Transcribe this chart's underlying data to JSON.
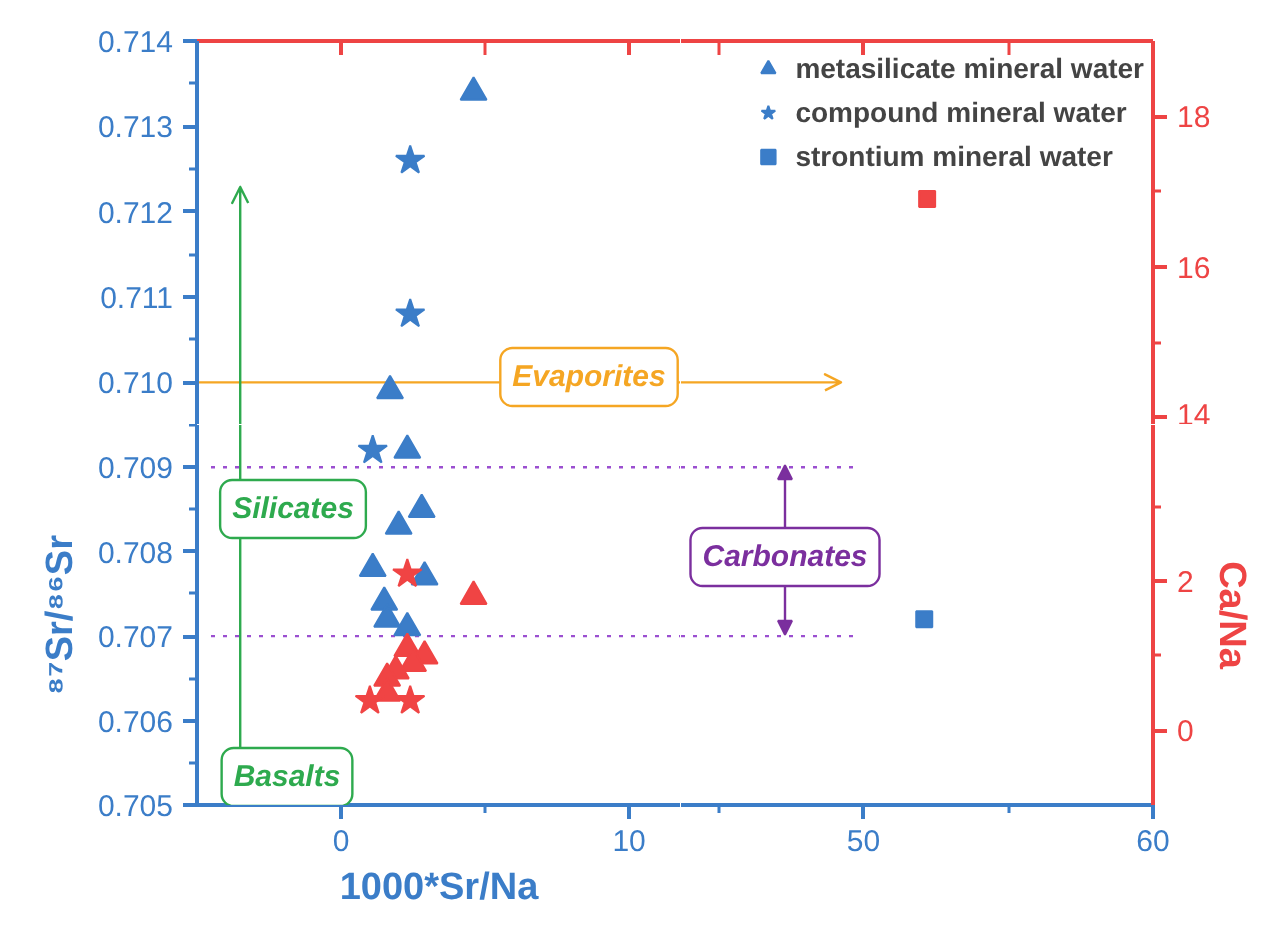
{
  "chart_data": [
    {
      "type": "scatter",
      "xlim": [
        -5,
        11.8
      ],
      "ylim": [
        0.7095,
        0.714
      ],
      "legend": "top right",
      "yticks": [
        {
          "value": 0.71,
          "label": "0.710"
        },
        {
          "value": 0.7105,
          "label": null
        },
        0.711,
        {
          "value": 0.7115,
          "label": null
        },
        0.712,
        {
          "value": 0.7125,
          "label": null
        },
        0.713,
        {
          "value": 0.7135,
          "label": null
        },
        0.714
      ],
      "series": [
        {
          "name": "metasilicate mineral water",
          "color": "#3b7dc8",
          "marker": "triangle",
          "x": [
            4.6,
            1.7
          ],
          "values": [
            0.7134,
            0.7099
          ]
        },
        {
          "name": "compound mineral water",
          "color": "#3b7dc8",
          "marker": "star",
          "x": [
            2.4,
            2.4
          ],
          "values": [
            0.7126,
            0.7108
          ]
        }
      ],
      "ref_lines": [
        {
          "axis": "y",
          "value": 0.71,
          "color": "#f5a623",
          "label": "Evaporites"
        },
        {
          "axis": "x",
          "value": -3.5,
          "color": "#2eaa4e"
        }
      ]
    },
    {
      "type": "scatter",
      "xlim": [
        43.7,
        60
      ],
      "ylim": [
        0.7095,
        0.714
      ],
      "y2lim": [
        13.9,
        19
      ],
      "y2ticks": [
        14,
        {
          "value": 15,
          "label": null
        },
        16,
        {
          "value": 17,
          "label": null
        },
        18
      ],
      "series": [
        {
          "color": "#f04444",
          "marker": "square",
          "axis": "y2",
          "x": [
            52.2
          ],
          "values": [
            16.9
          ]
        }
      ],
      "ref_lines": [
        {
          "axis": "y",
          "value": 0.71,
          "color": "#f5a623"
        }
      ]
    },
    {
      "type": "scatter",
      "xlabel": "1000*Sr/Na",
      "ylabel": "⁸⁷Sr/⁸⁶Sr",
      "xlim": [
        -5,
        11.8
      ],
      "xticks": [
        0,
        {
          "value": 5,
          "label": null
        },
        10
      ],
      "ylim": [
        0.705,
        0.7095
      ],
      "yticks": [
        0.705,
        {
          "value": 0.7055,
          "label": null
        },
        0.706,
        {
          "value": 0.7065,
          "label": null
        },
        0.707,
        {
          "value": 0.7075,
          "label": null
        },
        0.708,
        {
          "value": 0.7085,
          "label": null
        },
        0.709,
        {
          "value": 0.7095,
          "label": null
        }
      ],
      "y2lim": [
        -1,
        4.1
      ],
      "series": [
        {
          "color": "#3b7dc8",
          "marker": "triangle",
          "x": [
            2.3,
            2.8,
            2.0,
            1.1,
            2.9,
            1.5,
            1.6,
            2.3
          ],
          "values": [
            0.7092,
            0.7085,
            0.7083,
            0.7078,
            0.7077,
            0.7074,
            0.7072,
            0.7071
          ]
        },
        {
          "color": "#3b7dc8",
          "marker": "star",
          "x": [
            1.1
          ],
          "values": [
            0.7092
          ]
        },
        {
          "color": "#f04444",
          "marker": "triangle",
          "axis": "y2",
          "x": [
            4.6,
            2.3,
            2.9,
            2.5,
            1.9,
            1.6,
            1.6
          ],
          "values": [
            1.8,
            1.1,
            1.0,
            0.9,
            0.8,
            0.7,
            0.5
          ]
        },
        {
          "color": "#f04444",
          "marker": "star",
          "axis": "y2",
          "x": [
            2.3,
            1.0,
            2.4
          ],
          "values": [
            2.1,
            0.4,
            0.4
          ]
        }
      ],
      "ref_lines": [
        {
          "axis": "y",
          "value": 0.709,
          "color": "#9b4fd0",
          "line_style": "dotted"
        },
        {
          "axis": "y",
          "value": 0.707,
          "color": "#9b4fd0",
          "line_style": "dotted"
        },
        {
          "axis": "x",
          "value": -3.5,
          "color": "#2eaa4e",
          "label": "Silicates"
        }
      ],
      "annotations": [
        "Basalts"
      ]
    },
    {
      "type": "scatter",
      "y2label": "Ca/Na",
      "xlim": [
        43.7,
        60
      ],
      "xticks": [
        {
          "value": 45,
          "label": null
        },
        50,
        {
          "value": 55,
          "label": null
        },
        60
      ],
      "ylim": [
        0.705,
        0.7095
      ],
      "y2lim": [
        -1,
        4.1
      ],
      "y2ticks": [
        0,
        {
          "value": 1,
          "label": null
        },
        2,
        {
          "value": 3,
          "label": null
        }
      ],
      "series": [
        {
          "name": "strontium mineral water",
          "color": "#3b7dc8",
          "marker": "square",
          "x": [
            52.1
          ],
          "values": [
            0.7072
          ]
        }
      ],
      "ref_lines": [
        {
          "axis": "y",
          "value": 0.709,
          "color": "#9b4fd0",
          "line_style": "dotted"
        },
        {
          "axis": "y",
          "value": 0.707,
          "color": "#9b4fd0",
          "line_style": "dotted"
        }
      ],
      "annotations": [
        "Carbonates"
      ]
    }
  ]
}
